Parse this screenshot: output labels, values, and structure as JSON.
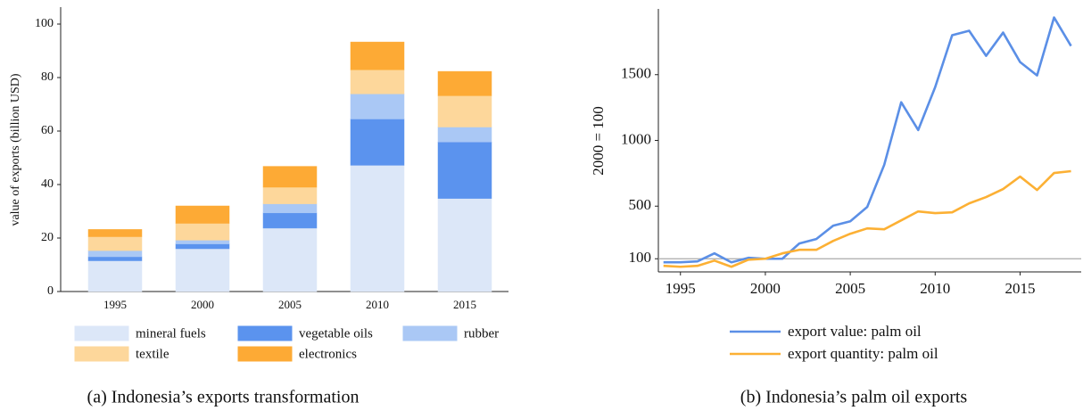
{
  "chart_data": [
    {
      "type": "bar",
      "stacked": true,
      "caption": "(a) Indonesia’s exports transformation",
      "y_label": "value of exports (billion USD)",
      "categories": [
        "1995",
        "2000",
        "2005",
        "2010",
        "2015"
      ],
      "series": [
        {
          "name": "mineral fuels",
          "color": "#dce7f8",
          "values": [
            11.5,
            16,
            23.7,
            47.2,
            34.8
          ]
        },
        {
          "name": "vegetable oils",
          "color": "#5b93ee",
          "values": [
            1.5,
            1.8,
            5.7,
            17.3,
            21.1
          ]
        },
        {
          "name": "rubber",
          "color": "#aac8f5",
          "values": [
            2.3,
            1.4,
            3.4,
            9.4,
            5.6
          ]
        },
        {
          "name": "textile",
          "color": "#fdd79b",
          "values": [
            5.2,
            6.3,
            6.2,
            9,
            11.7
          ]
        },
        {
          "name": "electronics",
          "color": "#fdaa35",
          "values": [
            2.7,
            6.5,
            7.8,
            10.4,
            9.1
          ]
        }
      ],
      "ylim": [
        0,
        105
      ],
      "yticks": [
        0,
        20,
        40,
        60,
        80,
        100
      ],
      "grid": false,
      "legend": "bottom"
    },
    {
      "type": "line",
      "caption": "(b) Indonesia’s palm oil exports",
      "y_label": "2000 = 100",
      "x": [
        1994,
        1995,
        1996,
        1997,
        1998,
        1999,
        2000,
        2001,
        2002,
        2003,
        2004,
        2005,
        2006,
        2007,
        2008,
        2009,
        2010,
        2011,
        2012,
        2013,
        2014,
        2015,
        2016,
        2017,
        2018
      ],
      "series": [
        {
          "name": "export value: palm oil",
          "color": "#5b8fe6",
          "values": [
            73,
            73,
            80,
            141,
            73,
            107,
            100,
            100,
            216,
            250,
            352,
            385,
            494,
            814,
            1290,
            1079,
            1405,
            1800,
            1834,
            1643,
            1820,
            1596,
            1494,
            1935,
            1718
          ]
        },
        {
          "name": "export quantity: palm oil",
          "color": "#fcb034",
          "values": [
            46,
            39,
            46,
            86,
            39,
            93,
            100,
            141,
            168,
            168,
            236,
            290,
            331,
            324,
            392,
            460,
            447,
            453,
            521,
            569,
            630,
            725,
            623,
            752,
            766
          ]
        }
      ],
      "reference_line": 100,
      "reference_color": "#aaaaaa",
      "xlim": [
        1993.7,
        2018.6
      ],
      "xticks": [
        1995,
        2000,
        2005,
        2010,
        2015
      ],
      "ylim": [
        0,
        2000
      ],
      "yticks": [
        100,
        500,
        1000,
        1500
      ],
      "grid": false,
      "legend": "bottom"
    }
  ]
}
